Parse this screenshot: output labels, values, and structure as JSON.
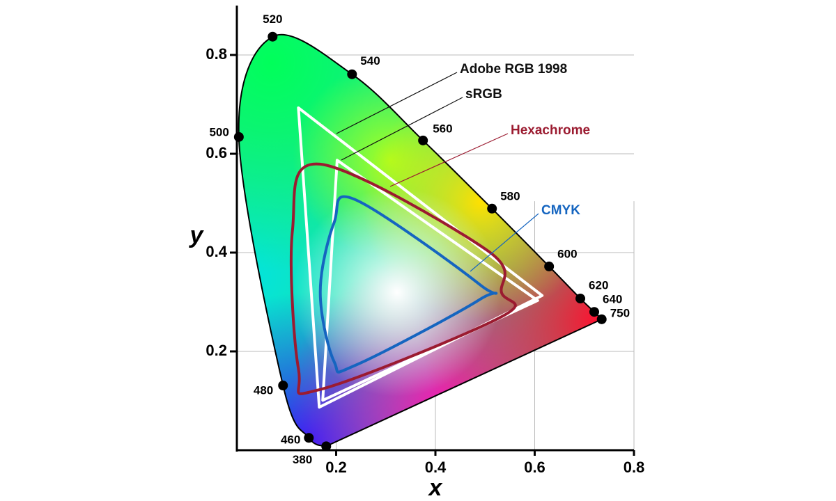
{
  "chart_data": {
    "type": "chromaticity",
    "xlabel": "x",
    "ylabel": "y",
    "xlim": [
      0,
      0.8
    ],
    "ylim": [
      0,
      0.9
    ],
    "xticks": [
      0.2,
      0.4,
      0.6,
      0.8
    ],
    "yticks": [
      0.2,
      0.4,
      0.6,
      0.8
    ],
    "grid": true,
    "spectral_locus": {
      "wavelengths": [
        380,
        460,
        480,
        500,
        520,
        540,
        560,
        580,
        600,
        620,
        640,
        750
      ],
      "x": [
        0.18,
        0.145,
        0.093,
        0.004,
        0.072,
        0.232,
        0.375,
        0.514,
        0.629,
        0.692,
        0.72,
        0.735
      ],
      "y": [
        0.008,
        0.025,
        0.131,
        0.634,
        0.837,
        0.761,
        0.627,
        0.489,
        0.372,
        0.307,
        0.28,
        0.265
      ]
    },
    "series": [
      {
        "name": "Adobe RGB 1998",
        "color": "#ffffff",
        "x": [
          0.124,
          0.615,
          0.166
        ],
        "y": [
          0.693,
          0.313,
          0.087
        ]
      },
      {
        "name": "sRGB",
        "color": "#ffffff",
        "x": [
          0.202,
          0.606,
          0.173
        ],
        "y": [
          0.587,
          0.303,
          0.101
        ]
      },
      {
        "name": "Hexachrome",
        "color": "#9b1b30",
        "x": [
          0.168,
          0.505,
          0.533,
          0.533,
          0.168,
          0.124,
          0.112
        ],
        "y": [
          0.579,
          0.404,
          0.32,
          0.27,
          0.123,
          0.165,
          0.445
        ]
      },
      {
        "name": "CMYK",
        "color": "#1565c0",
        "x": [
          0.239,
          0.491,
          0.491,
          0.239,
          0.196,
          0.168,
          0.196
        ],
        "y": [
          0.507,
          0.334,
          0.306,
          0.172,
          0.179,
          0.32,
          0.461
        ]
      }
    ]
  }
}
